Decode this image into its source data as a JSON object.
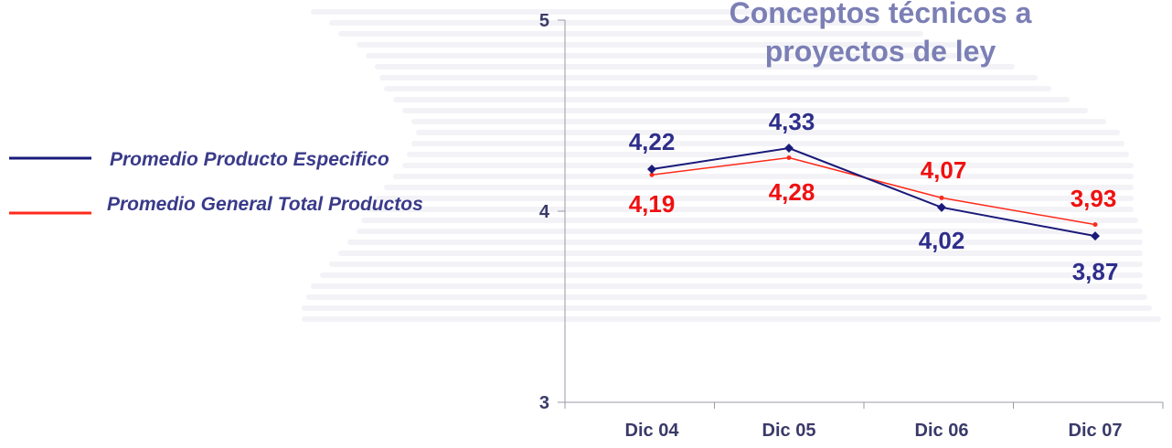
{
  "chart_data": {
    "type": "line",
    "title_lines": [
      "Conceptos técnicos a",
      "proyectos de ley"
    ],
    "categories": [
      "Dic 04",
      "Dic 05",
      "Dic 06",
      "Dic 07"
    ],
    "ylim": [
      3,
      5
    ],
    "yticks": [
      {
        "value": 3,
        "label": "3"
      },
      {
        "value": 4,
        "label": "4"
      },
      {
        "value": 5,
        "label": "5"
      }
    ],
    "grid": false,
    "legend_position": "left",
    "series": [
      {
        "name": "Promedio Producto Especifico",
        "color": "#1A1A7A",
        "label_color": "#2E2E8C",
        "values": [
          4.22,
          4.33,
          4.02,
          3.87
        ],
        "labels": [
          "4,22",
          "4,33",
          "4,02",
          "3,87"
        ]
      },
      {
        "name": "Promedio General Total Productos",
        "color": "#FF2A1A",
        "label_color": "#F01010",
        "values": [
          4.19,
          4.28,
          4.07,
          3.93
        ],
        "labels": [
          "4,19",
          "4,28",
          "4,07",
          "3,93"
        ]
      }
    ]
  }
}
